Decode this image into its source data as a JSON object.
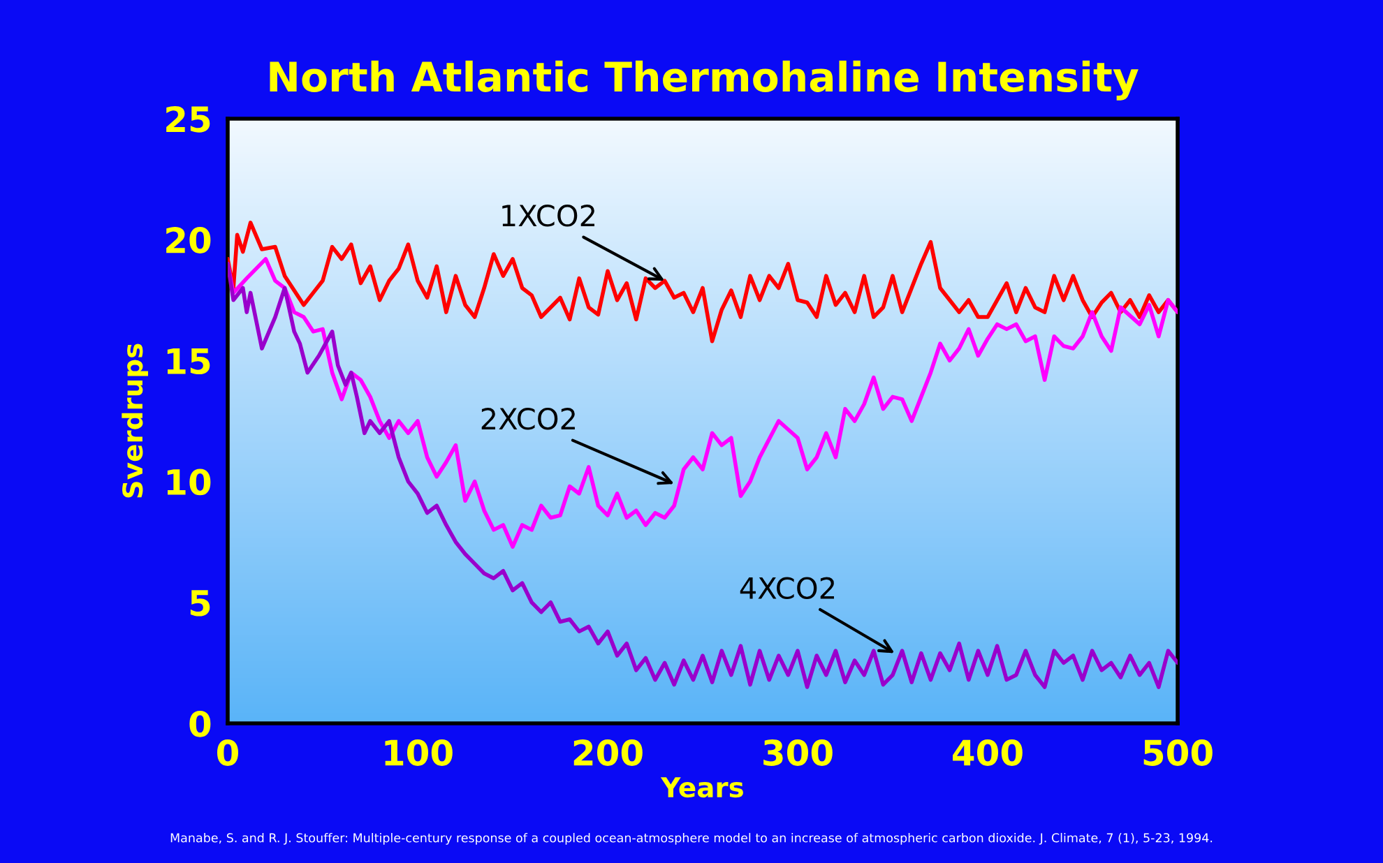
{
  "chart_data": {
    "type": "line",
    "title": "North Atlantic Thermohaline Intensity",
    "xlabel": "Years",
    "ylabel": "Sverdrups",
    "xlim": [
      0,
      500
    ],
    "xticks": [
      0,
      100,
      200,
      300,
      400,
      500
    ],
    "ylim": [
      0,
      25
    ],
    "yticks": [
      0,
      5,
      10,
      15,
      20,
      25
    ],
    "grid": false,
    "legend": false,
    "marker": "none",
    "line_style": "solid",
    "series": [
      {
        "color": "#ff0000",
        "x": [
          0,
          3,
          5,
          8,
          12,
          18,
          25,
          30,
          40,
          45,
          50,
          55,
          60,
          65,
          70,
          75,
          80,
          85,
          90,
          95,
          100,
          105,
          110,
          115,
          120,
          125,
          130,
          135,
          140,
          145,
          150,
          155,
          160,
          165,
          170,
          175,
          180,
          185,
          190,
          195,
          200,
          205,
          210,
          215,
          220,
          225,
          230,
          235,
          240,
          245,
          250,
          255,
          260,
          265,
          270,
          275,
          280,
          285,
          290,
          295,
          300,
          305,
          310,
          315,
          320,
          325,
          330,
          335,
          340,
          345,
          350,
          355,
          360,
          365,
          370,
          375,
          380,
          385,
          390,
          395,
          400,
          405,
          410,
          415,
          420,
          425,
          430,
          435,
          440,
          445,
          450,
          455,
          460,
          465,
          470,
          475,
          480,
          485,
          490,
          495,
          500
        ],
        "values": [
          19.2,
          18.0,
          20.2,
          19.5,
          20.7,
          19.6,
          19.7,
          18.5,
          17.3,
          17.8,
          18.3,
          19.7,
          19.2,
          19.8,
          18.2,
          18.9,
          17.5,
          18.3,
          18.8,
          19.8,
          18.3,
          17.6,
          18.9,
          17.0,
          18.5,
          17.3,
          16.8,
          18.0,
          19.4,
          18.5,
          19.2,
          18.0,
          17.7,
          16.8,
          17.2,
          17.6,
          16.7,
          18.4,
          17.2,
          16.9,
          18.7,
          17.5,
          18.2,
          16.7,
          18.4,
          18.0,
          18.3,
          17.6,
          17.8,
          17.0,
          18.0,
          15.8,
          17.1,
          17.9,
          16.8,
          18.5,
          17.5,
          18.5,
          18.0,
          19.0,
          17.5,
          17.4,
          16.8,
          18.5,
          17.3,
          17.8,
          17.0,
          18.5,
          16.8,
          17.2,
          18.5,
          17.0,
          18.0,
          19.0,
          19.9,
          18.0,
          17.5,
          17.0,
          17.5,
          16.8,
          16.8,
          17.5,
          18.2,
          17.0,
          18.0,
          17.2,
          17.0,
          18.5,
          17.5,
          18.5,
          17.5,
          16.8,
          17.4,
          17.8,
          17.0,
          17.5,
          16.8,
          17.7,
          17.0,
          17.5,
          17.0
        ]
      },
      {
        "color": "#ff00ff",
        "x": [
          0,
          3,
          10,
          20,
          25,
          30,
          35,
          40,
          45,
          50,
          55,
          60,
          65,
          70,
          75,
          80,
          85,
          90,
          95,
          100,
          105,
          110,
          115,
          120,
          125,
          130,
          135,
          140,
          145,
          150,
          155,
          160,
          165,
          170,
          175,
          180,
          185,
          190,
          195,
          200,
          205,
          210,
          215,
          220,
          225,
          230,
          235,
          240,
          245,
          250,
          255,
          260,
          265,
          270,
          275,
          280,
          290,
          300,
          305,
          310,
          315,
          320,
          325,
          330,
          335,
          340,
          345,
          350,
          355,
          360,
          365,
          370,
          375,
          380,
          385,
          390,
          395,
          400,
          405,
          410,
          415,
          420,
          425,
          430,
          435,
          440,
          445,
          450,
          455,
          460,
          465,
          470,
          480,
          485,
          490,
          495,
          500
        ],
        "values": [
          19.0,
          17.8,
          18.4,
          19.2,
          18.3,
          18.0,
          17.0,
          16.8,
          16.2,
          16.3,
          14.5,
          13.4,
          14.5,
          14.2,
          13.5,
          12.5,
          11.8,
          12.5,
          12.0,
          12.5,
          11.0,
          10.2,
          10.8,
          11.5,
          9.2,
          10.0,
          8.8,
          8.0,
          8.2,
          7.3,
          8.2,
          8.0,
          9.0,
          8.5,
          8.6,
          9.8,
          9.5,
          10.6,
          9.0,
          8.6,
          9.5,
          8.5,
          8.8,
          8.2,
          8.7,
          8.5,
          9.0,
          10.5,
          11.0,
          10.5,
          12.0,
          11.5,
          11.8,
          9.4,
          10.0,
          11.0,
          12.5,
          11.8,
          10.5,
          11.0,
          12.0,
          11.0,
          13.0,
          12.5,
          13.2,
          14.3,
          13.0,
          13.5,
          13.4,
          12.5,
          13.5,
          14.5,
          15.7,
          15.0,
          15.5,
          16.3,
          15.2,
          15.9,
          16.5,
          16.3,
          16.5,
          15.8,
          16.0,
          14.2,
          16.0,
          15.6,
          15.5,
          16.0,
          17.0,
          16.0,
          15.4,
          17.2,
          16.5,
          17.3,
          16.0,
          17.5,
          17.0
        ]
      },
      {
        "color": "#9900cc",
        "x": [
          0,
          3,
          8,
          10,
          12,
          18,
          25,
          30,
          35,
          38,
          42,
          48,
          55,
          58,
          62,
          65,
          68,
          72,
          75,
          80,
          85,
          90,
          95,
          100,
          105,
          110,
          115,
          120,
          125,
          130,
          135,
          140,
          145,
          150,
          155,
          160,
          165,
          170,
          175,
          180,
          185,
          190,
          195,
          200,
          205,
          210,
          215,
          220,
          225,
          230,
          235,
          240,
          245,
          250,
          255,
          260,
          265,
          270,
          275,
          280,
          285,
          290,
          295,
          300,
          305,
          310,
          315,
          320,
          325,
          330,
          335,
          340,
          345,
          350,
          355,
          360,
          365,
          370,
          375,
          380,
          385,
          390,
          395,
          400,
          405,
          410,
          415,
          420,
          425,
          430,
          435,
          440,
          445,
          450,
          455,
          460,
          465,
          470,
          475,
          480,
          485,
          490,
          495,
          500
        ],
        "values": [
          19.0,
          17.5,
          18.0,
          17.0,
          17.8,
          15.5,
          16.8,
          18.0,
          16.2,
          15.7,
          14.5,
          15.2,
          16.2,
          14.8,
          14.0,
          14.5,
          13.5,
          12.0,
          12.5,
          12.0,
          12.5,
          11.0,
          10.0,
          9.5,
          8.7,
          9.0,
          8.2,
          7.5,
          7.0,
          6.6,
          6.2,
          6.0,
          6.3,
          5.5,
          5.8,
          5.0,
          4.6,
          5.0,
          4.2,
          4.3,
          3.8,
          4.0,
          3.3,
          3.8,
          2.8,
          3.3,
          2.2,
          2.7,
          1.8,
          2.5,
          1.6,
          2.6,
          1.8,
          2.8,
          1.7,
          3.0,
          2.0,
          3.2,
          1.6,
          3.0,
          1.8,
          2.8,
          2.0,
          3.0,
          1.5,
          2.8,
          2.0,
          3.0,
          1.7,
          2.6,
          2.0,
          3.0,
          1.6,
          2.0,
          3.0,
          1.7,
          2.9,
          1.8,
          2.9,
          2.2,
          3.3,
          1.8,
          3.0,
          2.0,
          3.2,
          1.8,
          2.0,
          3.0,
          2.0,
          1.5,
          3.0,
          2.5,
          2.8,
          1.8,
          3.0,
          2.2,
          2.5,
          1.9,
          2.8,
          2.0,
          2.5,
          1.5,
          3.0,
          2.5
        ]
      }
    ],
    "annotations": [
      {
        "text": "1XCO2",
        "x": 230,
        "y": 18.3
      },
      {
        "text": "2XCO2",
        "x": 235,
        "y": 9.9
      },
      {
        "text": "4XCO2",
        "x": 351,
        "y": 2.9
      },
      "Manabe, S. and R. J. Stouffer: Multiple-century response of a coupled ocean-atmosphere model to an increase of atmospheric carbon dioxide. J. Climate, 7 (1), 5-23, 1994."
    ]
  }
}
